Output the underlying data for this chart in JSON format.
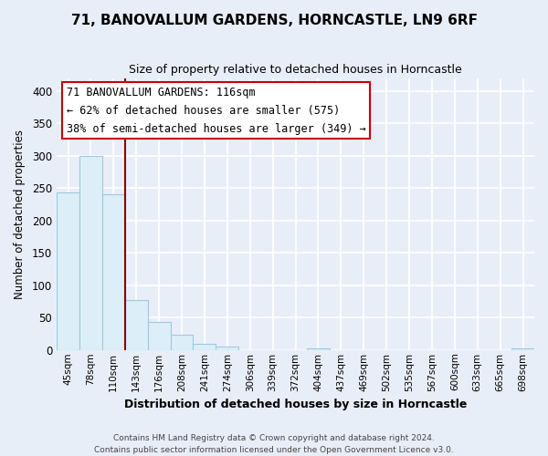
{
  "title": "71, BANOVALLUM GARDENS, HORNCASTLE, LN9 6RF",
  "subtitle": "Size of property relative to detached houses in Horncastle",
  "xlabel": "Distribution of detached houses by size in Horncastle",
  "ylabel": "Number of detached properties",
  "bar_labels": [
    "45sqm",
    "78sqm",
    "110sqm",
    "143sqm",
    "176sqm",
    "208sqm",
    "241sqm",
    "274sqm",
    "306sqm",
    "339sqm",
    "372sqm",
    "404sqm",
    "437sqm",
    "469sqm",
    "502sqm",
    "535sqm",
    "567sqm",
    "600sqm",
    "633sqm",
    "665sqm",
    "698sqm"
  ],
  "bar_values": [
    243,
    299,
    240,
    77,
    43,
    23,
    10,
    6,
    0,
    0,
    0,
    3,
    0,
    0,
    0,
    0,
    0,
    0,
    0,
    0,
    2
  ],
  "bar_fill_color": "#dceef7",
  "bar_edge_color": "#a0c8de",
  "vline_x": 2.5,
  "vline_color": "#8b0000",
  "ylim": [
    0,
    420
  ],
  "yticks": [
    0,
    50,
    100,
    150,
    200,
    250,
    300,
    350,
    400
  ],
  "annotation_title": "71 BANOVALLUM GARDENS: 116sqm",
  "annotation_line1": "← 62% of detached houses are smaller (575)",
  "annotation_line2": "38% of semi-detached houses are larger (349) →",
  "annotation_box_color": "#ffffff",
  "annotation_box_edge": "#cc0000",
  "footer1": "Contains HM Land Registry data © Crown copyright and database right 2024.",
  "footer2": "Contains public sector information licensed under the Open Government Licence v3.0.",
  "bg_color": "#e8eef8",
  "plot_bg_color": "#e8eef8",
  "grid_color": "#ffffff",
  "title_fontsize": 11,
  "subtitle_fontsize": 9
}
